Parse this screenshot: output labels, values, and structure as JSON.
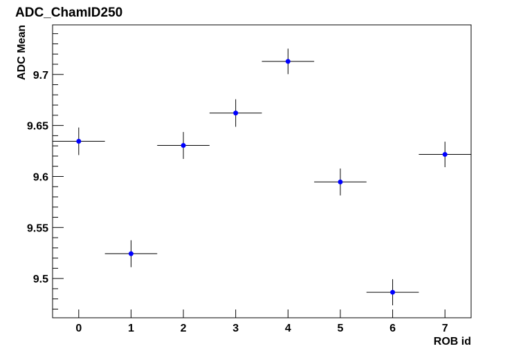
{
  "chart_data": {
    "type": "errorbar",
    "title": "ADC_ChamID250",
    "x_label": "ROB id",
    "y_label": "ADC Mean",
    "series": [
      {
        "color": "#0000ff",
        "error_color": "#000000",
        "x": [
          0,
          1,
          2,
          3,
          4,
          5,
          6,
          7
        ],
        "xerr": [
          0.5,
          0.5,
          0.5,
          0.5,
          0.5,
          0.5,
          0.5,
          0.5
        ],
        "values": [
          9.6345,
          9.5243,
          9.6304,
          9.6622,
          9.7128,
          9.5946,
          9.4865,
          9.6216
        ],
        "yerr": [
          0.0135,
          0.0132,
          0.0132,
          0.0135,
          0.0125,
          0.0132,
          0.0128,
          0.0125
        ]
      }
    ],
    "xlim": [
      -0.5,
      7.5
    ],
    "xticks": [
      0,
      1,
      2,
      3,
      4,
      5,
      6,
      7
    ],
    "ylim": [
      9.4615,
      9.7486
    ],
    "yticks": [
      9.5,
      9.55,
      9.6,
      9.65,
      9.7
    ],
    "yminorticks": [
      9.47,
      9.48,
      9.49,
      9.51,
      9.52,
      9.53,
      9.54,
      9.56,
      9.57,
      9.58,
      9.59,
      9.61,
      9.62,
      9.63,
      9.64,
      9.66,
      9.67,
      9.68,
      9.69,
      9.71,
      9.72,
      9.73,
      9.74
    ],
    "grid": false
  }
}
